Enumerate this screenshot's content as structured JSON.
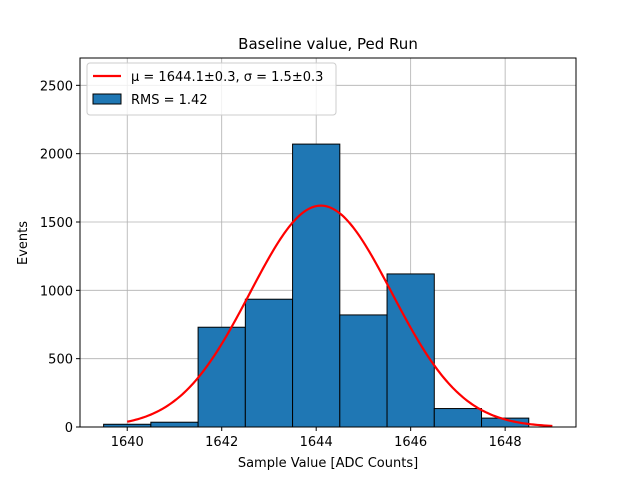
{
  "chart_data": {
    "type": "bar",
    "title": "Baseline value, Ped Run",
    "xlabel": "Sample Value [ADC Counts]",
    "ylabel": "Events",
    "xlim": [
      1639.0,
      1649.5
    ],
    "ylim": [
      0,
      2700
    ],
    "xticks": [
      1640,
      1642,
      1644,
      1646,
      1648
    ],
    "yticks": [
      0,
      500,
      1000,
      1500,
      2000,
      2500
    ],
    "grid": true,
    "legend_position": "top-left",
    "histogram": {
      "name": "RMS = 1.42",
      "color": "#1f77b4",
      "edge_color": "#000000",
      "bins": [
        {
          "x0": 1639.5,
          "x1": 1640.5,
          "count": 20
        },
        {
          "x0": 1640.5,
          "x1": 1641.5,
          "count": 35
        },
        {
          "x0": 1641.5,
          "x1": 1642.5,
          "count": 730
        },
        {
          "x0": 1642.5,
          "x1": 1643.5,
          "count": 935
        },
        {
          "x0": 1643.5,
          "x1": 1644.5,
          "count": 2070
        },
        {
          "x0": 1644.5,
          "x1": 1645.5,
          "count": 820
        },
        {
          "x0": 1645.5,
          "x1": 1646.5,
          "count": 1120
        },
        {
          "x0": 1646.5,
          "x1": 1647.5,
          "count": 135
        },
        {
          "x0": 1647.5,
          "x1": 1648.5,
          "count": 65
        }
      ]
    },
    "fit": {
      "name": "μ = 1644.1±0.3, σ = 1.5±0.3",
      "color": "#ff0000",
      "mu": 1644.1,
      "sigma": 1.5,
      "amplitude": 1620,
      "x_range": [
        1640,
        1649
      ]
    }
  }
}
